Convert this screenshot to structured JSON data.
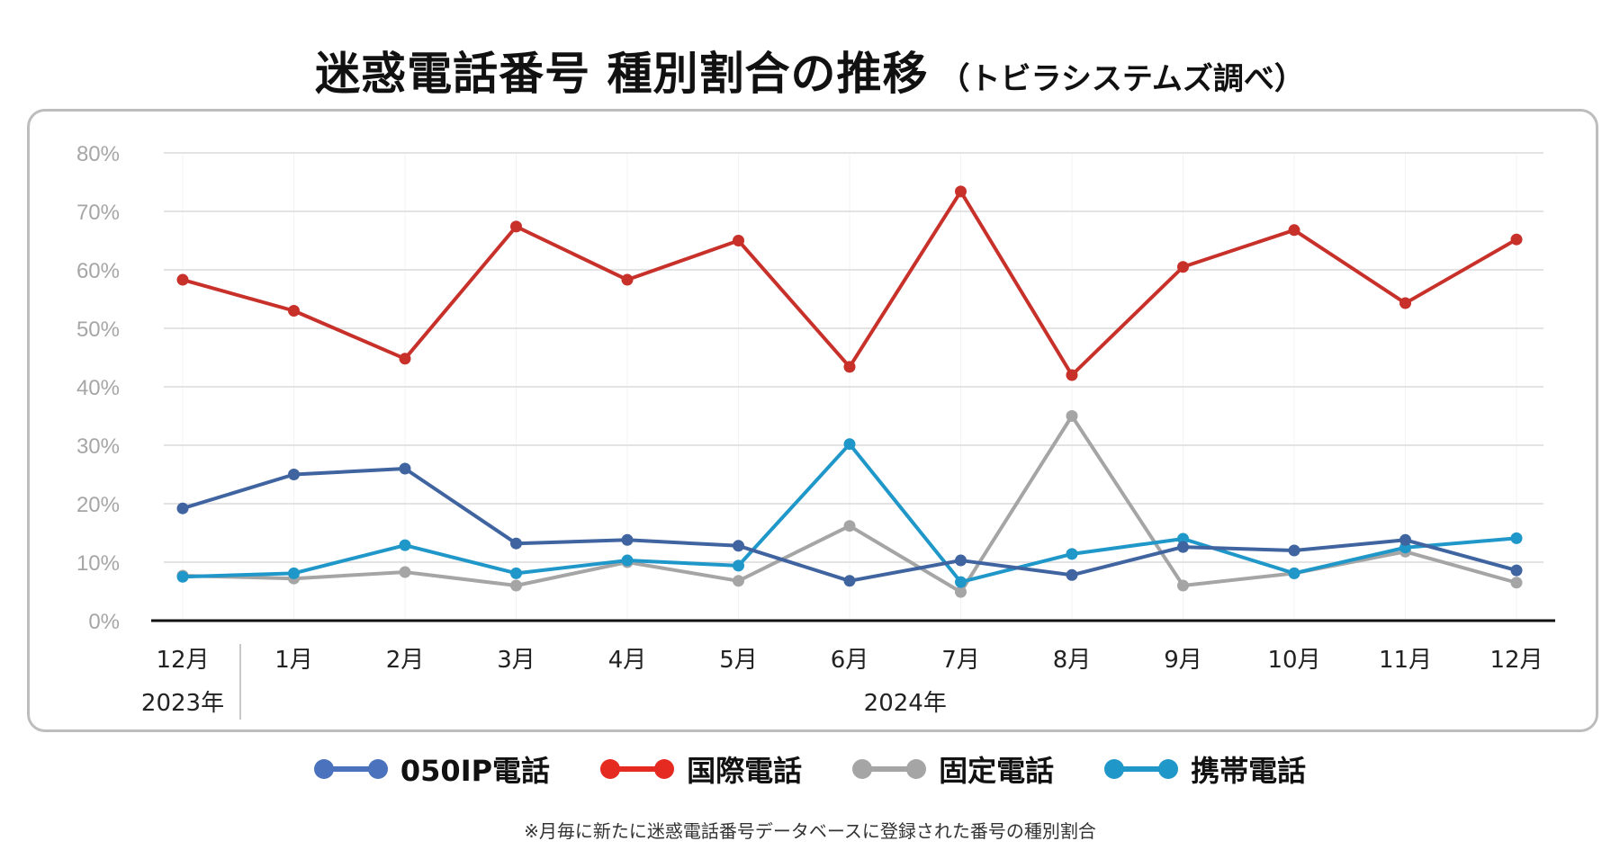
{
  "title": {
    "main": "迷惑電話番号 種別割合の推移",
    "sub": "（トビラシステムズ調べ）"
  },
  "footnote": "※月毎に新たに迷惑電話番号データベースに登録された番号の種別割合",
  "chart_data": {
    "type": "line",
    "title": "迷惑電話番号 種別割合の推移（トビラシステムズ調べ）",
    "xlabel": "",
    "ylabel": "",
    "categories": [
      "12月",
      "1月",
      "2月",
      "3月",
      "4月",
      "5月",
      "6月",
      "7月",
      "8月",
      "9月",
      "10月",
      "11月",
      "12月"
    ],
    "year_groups": [
      {
        "label": "2023年",
        "span": [
          0,
          0
        ]
      },
      {
        "label": "2024年",
        "span": [
          1,
          12
        ]
      }
    ],
    "y_ticks": [
      "0%",
      "10%",
      "20%",
      "30%",
      "40%",
      "50%",
      "60%",
      "70%",
      "80%"
    ],
    "ylim": [
      0,
      80
    ],
    "y_unit": "%",
    "grid": true,
    "legend_position": "bottom",
    "series": [
      {
        "name": "050IP電話",
        "color": "#3f64a0",
        "legend_color": "#4a72bd",
        "values": [
          19.2,
          25.0,
          26.0,
          13.2,
          13.8,
          12.8,
          6.8,
          10.3,
          7.8,
          12.6,
          12.0,
          13.8,
          8.6
        ]
      },
      {
        "name": "国際電話",
        "color": "#c8302a",
        "legend_color": "#e52a22",
        "values": [
          58.3,
          53.0,
          44.8,
          67.4,
          58.3,
          65.0,
          43.4,
          73.4,
          42.0,
          60.5,
          66.8,
          54.3,
          65.2
        ]
      },
      {
        "name": "固定電話",
        "color": "#a5a5a5",
        "legend_color": "#a5a5a5",
        "values": [
          7.7,
          7.2,
          8.3,
          6.0,
          10.0,
          6.8,
          16.2,
          4.9,
          35.0,
          6.0,
          8.1,
          11.8,
          6.5
        ]
      },
      {
        "name": "携帯電話",
        "color": "#1f97c9",
        "legend_color": "#1f97c9",
        "values": [
          7.5,
          8.1,
          12.9,
          8.1,
          10.3,
          9.4,
          30.2,
          6.6,
          11.4,
          14.0,
          8.1,
          12.5,
          14.1
        ]
      }
    ]
  }
}
